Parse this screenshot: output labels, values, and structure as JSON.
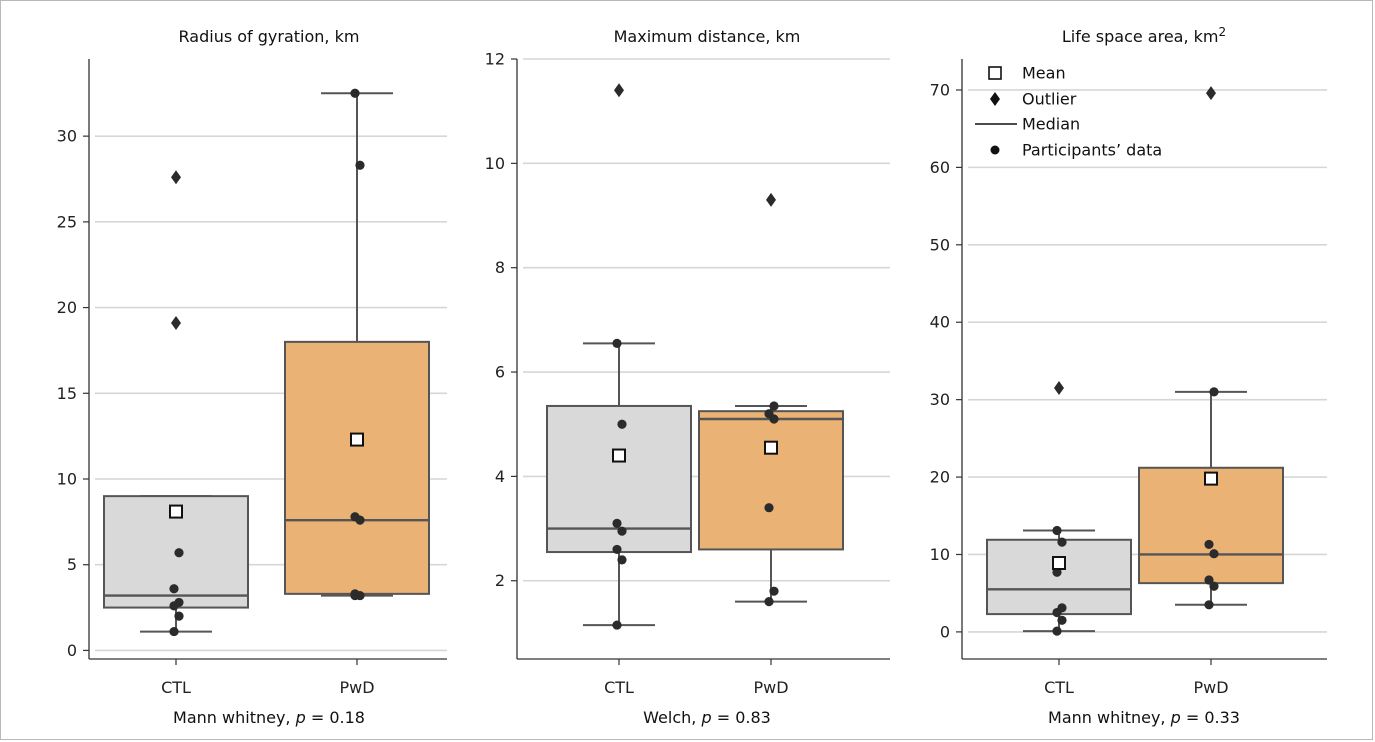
{
  "chart_data": [
    {
      "type": "box",
      "title": "Radius of gyration, km",
      "title_sup": "",
      "categories": [
        "CTL",
        "PwD"
      ],
      "ylim": [
        -0.5,
        34.5
      ],
      "yticks": [
        0,
        5,
        10,
        15,
        20,
        25,
        30
      ],
      "grid": true,
      "test_label": "Mann whitney, ",
      "p_symbol": "p",
      "p_text": " = 0.18",
      "groups": [
        {
          "name": "CTL",
          "color": "#d9d9d9",
          "whisker_low": 1.1,
          "q1": 2.5,
          "median": 3.2,
          "q3": 9.0,
          "whisker_high": 9.0,
          "mean": 8.1,
          "outliers": [
            19.1,
            27.6
          ],
          "points": [
            1.1,
            2.0,
            2.6,
            2.8,
            3.6,
            5.7
          ]
        },
        {
          "name": "PwD",
          "color": "#ebb275",
          "whisker_low": 3.2,
          "q1": 3.3,
          "median": 7.6,
          "q3": 18.0,
          "whisker_high": 32.5,
          "mean": 12.3,
          "outliers": [],
          "points": [
            3.2,
            3.2,
            3.3,
            7.6,
            7.8,
            28.3,
            32.5
          ]
        }
      ]
    },
    {
      "type": "box",
      "title": "Maximum distance, km",
      "title_sup": "",
      "categories": [
        "CTL",
        "PwD"
      ],
      "ylim": [
        0.5,
        12.0
      ],
      "yticks": [
        2,
        4,
        6,
        8,
        10,
        12
      ],
      "grid": true,
      "test_label": "Welch, ",
      "p_symbol": "p",
      "p_text": " = 0.83",
      "groups": [
        {
          "name": "CTL",
          "color": "#d9d9d9",
          "whisker_low": 1.15,
          "q1": 2.55,
          "median": 3.0,
          "q3": 5.35,
          "whisker_high": 6.55,
          "mean": 4.4,
          "outliers": [
            11.4
          ],
          "points": [
            1.15,
            2.4,
            2.6,
            2.95,
            3.1,
            5.0,
            6.55
          ]
        },
        {
          "name": "PwD",
          "color": "#ebb275",
          "whisker_low": 1.6,
          "q1": 2.6,
          "median": 5.1,
          "q3": 5.25,
          "whisker_high": 5.35,
          "mean": 4.55,
          "outliers": [
            9.3
          ],
          "points": [
            1.6,
            1.8,
            3.4,
            5.1,
            5.2,
            5.35
          ]
        }
      ]
    },
    {
      "type": "box",
      "title": "Life space area, km",
      "title_sup": "2",
      "categories": [
        "CTL",
        "PwD"
      ],
      "ylim": [
        -3.5,
        74.0
      ],
      "yticks": [
        0,
        10,
        20,
        30,
        40,
        50,
        60,
        70
      ],
      "grid": true,
      "test_label": "Mann whitney, ",
      "p_symbol": "p",
      "p_text": " = 0.33",
      "groups": [
        {
          "name": "CTL",
          "color": "#d9d9d9",
          "whisker_low": 0.1,
          "q1": 2.3,
          "median": 5.5,
          "q3": 11.9,
          "whisker_high": 13.1,
          "mean": 8.9,
          "outliers": [
            31.5
          ],
          "points": [
            0.1,
            1.5,
            2.5,
            3.1,
            7.7,
            11.6,
            13.1
          ]
        },
        {
          "name": "PwD",
          "color": "#ebb275",
          "whisker_low": 3.5,
          "q1": 6.3,
          "median": 10.0,
          "q3": 21.2,
          "whisker_high": 31.0,
          "mean": 19.8,
          "outliers": [
            69.6
          ],
          "points": [
            3.5,
            5.9,
            6.7,
            10.1,
            11.3,
            31.0
          ]
        }
      ]
    }
  ],
  "legend": {
    "placement": "top-left of third panel",
    "items": [
      {
        "symbol": "square",
        "label": "Mean"
      },
      {
        "symbol": "diamond",
        "label": "Outlier"
      },
      {
        "symbol": "line",
        "label": "Median"
      },
      {
        "symbol": "dot",
        "label": "Participants’ data"
      }
    ]
  },
  "colors": {
    "ctl": "#d9d9d9",
    "pwd": "#ebb275",
    "line": "#555555",
    "dot": "#2b2b2b",
    "grid": "#d6d6d6"
  }
}
